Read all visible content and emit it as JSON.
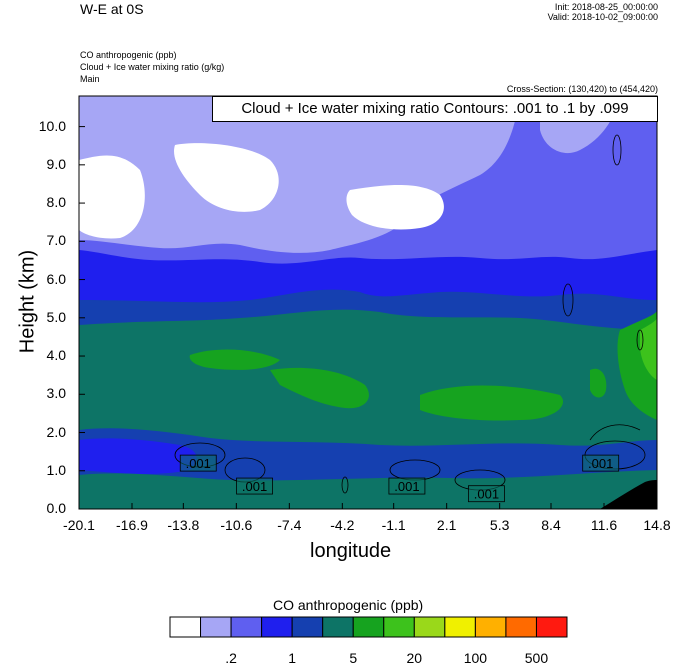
{
  "header": {
    "title": "W-E at 0S",
    "init": "Init: 2018-08-25_00:00:00",
    "valid": "Valid: 2018-10-02_09:00:00",
    "field_1": "CO anthropogenic   (ppb)",
    "field_2": "Cloud + Ice water mixing ratio   (g/kg)",
    "field_3": "Main",
    "cross_section": "Cross-Section: (130,420) to (454,420)",
    "contour_info": "Cloud + Ice water mixing ratio Contours: .001 to .1 by .099"
  },
  "chart_data": {
    "type": "heatmap",
    "title": "W-E at 0S",
    "xlabel": "longitude",
    "ylabel": "Height (km)",
    "x_ticks": [
      "-20.1",
      "-16.9",
      "-13.8",
      "-10.6",
      "-7.4",
      "-4.2",
      "-1.1",
      "2.1",
      "5.3",
      "8.4",
      "11.6",
      "14.8"
    ],
    "x_tick_values": [
      -20.1,
      -16.9,
      -13.8,
      -10.6,
      -7.4,
      -4.2,
      -1.1,
      2.1,
      5.3,
      8.4,
      11.6,
      14.8
    ],
    "y_ticks": [
      "0.0",
      "1.0",
      "2.0",
      "3.0",
      "4.0",
      "5.0",
      "6.0",
      "7.0",
      "8.0",
      "9.0",
      "10.0"
    ],
    "y_tick_values": [
      0,
      1,
      2,
      3,
      4,
      5,
      6,
      7,
      8,
      9,
      10
    ],
    "xlim": [
      -20.1,
      14.8
    ],
    "ylim": [
      0,
      10.8
    ],
    "contour_labels": [
      {
        "text": ".001",
        "x": -12.9,
        "y": 1.2
      },
      {
        "text": ".001",
        "x": -9.5,
        "y": 0.6
      },
      {
        "text": ".001",
        "x": -0.3,
        "y": 0.6
      },
      {
        "text": ".001",
        "x": 4.5,
        "y": 0.4
      },
      {
        "text": ".001",
        "x": 11.4,
        "y": 1.2
      }
    ],
    "colorbar": {
      "title": "CO anthropogenic  (ppb)",
      "colors": [
        "#ffffff",
        "#a6a6f5",
        "#5f5ff0",
        "#1f1fee",
        "#1540b0",
        "#0d7466",
        "#16a31f",
        "#3dc21c",
        "#9ad81a",
        "#f0f000",
        "#ffb000",
        "#ff6a00",
        "#ff1a10"
      ],
      "labels": [
        ".2",
        "1",
        "5",
        "20",
        "100",
        "500"
      ]
    }
  }
}
